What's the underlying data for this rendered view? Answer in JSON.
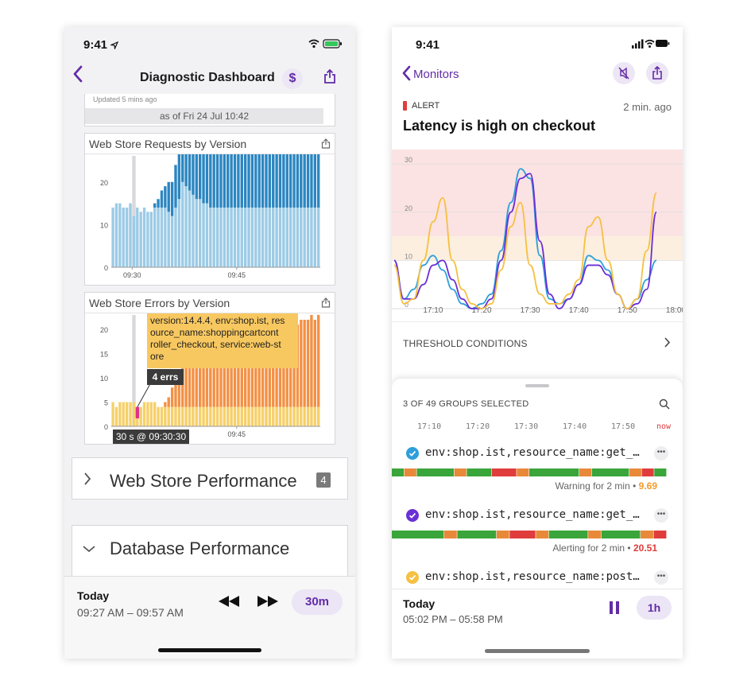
{
  "left": {
    "status": {
      "time": "9:41"
    },
    "nav": {
      "title": "Diagnostic Dashboard"
    },
    "top_card": {
      "updated": "Updated 5 mins ago",
      "as_of": "as of Fri 24 Jul 10:42"
    },
    "requests_widget": {
      "title": "Web Store Requests by Version",
      "y_ticks": [
        "0",
        "10",
        "20"
      ],
      "x_ticks": [
        "09:30",
        "09:45"
      ]
    },
    "errors_widget": {
      "title": "Web Store Errors by Version",
      "y_ticks": [
        "0",
        "5",
        "10",
        "15",
        "20"
      ],
      "x_ticks": [
        "09:45"
      ],
      "tooltip_text": "version:14.4.4, env:shop.ist, resource_name:shoppingcartcontroller_checkout, service:web-store",
      "tooltip_lines": [
        "version:14.4.4, env:shop.ist, res",
        "ource_name:shoppingcartcont",
        "roller_checkout, service:web-st",
        "ore"
      ],
      "errs_badge": "4 errs",
      "time_badge": "30 s @ 09:30:30"
    },
    "groups": [
      {
        "label": "Web Store Performance",
        "count": "4",
        "expanded": false
      },
      {
        "label": "Database Performance",
        "expanded": true
      }
    ],
    "footer": {
      "day": "Today",
      "range": "09:27 AM – 09:57 AM",
      "span": "30m"
    }
  },
  "right": {
    "status": {
      "time": "9:41"
    },
    "nav": {
      "back": "Monitors"
    },
    "alert": {
      "level": "ALERT",
      "ago": "2 min. ago",
      "title": "Latency is high on checkout"
    },
    "chart": {
      "y_ticks": [
        "0",
        "10",
        "20",
        "30"
      ],
      "x_ticks": [
        "17:10",
        "17:20",
        "17:30",
        "17:40",
        "17:50",
        "18:00"
      ]
    },
    "threshold": {
      "label": "THRESHOLD CONDITIONS"
    },
    "groups": {
      "selected": "3 OF 49 GROUPS SELECTED",
      "times": [
        "17:10",
        "17:20",
        "17:30",
        "17:40",
        "17:50",
        "now"
      ],
      "rows": [
        {
          "name": "env:shop.ist,resource_name:get_…",
          "status": "Warning for 2 min",
          "value": "9.69",
          "icon_color": "#2e9fdb",
          "value_color": "#f39a2b"
        },
        {
          "name": "env:shop.ist,resource_name:get_…",
          "status": "Alerting for 2 min",
          "value": "20.51",
          "icon_color": "#6b2fd6",
          "value_color": "#e03c3c"
        },
        {
          "name": "env:shop.ist,resource_name:post…",
          "icon_color": "#f6c042"
        }
      ]
    },
    "footer": {
      "day": "Today",
      "range": "05:02 PM – 05:58 PM",
      "span": "1h"
    }
  },
  "chart_data": [
    {
      "type": "bar",
      "title": "Web Store Requests by Version",
      "x_start": "09:27",
      "x_end": "09:57",
      "ylim": [
        0,
        25
      ],
      "series": [
        {
          "name": "",
          "color": "#9ccbe6",
          "values": [
            14,
            15,
            15,
            14,
            14,
            15,
            12,
            14,
            13,
            14,
            13,
            13,
            14,
            14,
            14,
            14,
            13,
            12,
            14,
            16,
            20,
            19,
            18,
            17,
            16,
            16,
            15,
            15,
            14,
            14,
            14,
            14,
            14,
            14,
            14,
            14,
            14,
            14,
            14,
            14,
            14,
            14,
            14,
            14,
            14,
            14,
            14,
            14,
            14,
            14,
            14,
            14,
            14,
            14,
            14,
            14,
            14,
            14,
            14,
            14
          ]
        },
        {
          "name": "",
          "color": "#2b86c1",
          "values": [
            0,
            0,
            0,
            0,
            0,
            0,
            0,
            0,
            0,
            0,
            0,
            0,
            1,
            2,
            4,
            5,
            7,
            8,
            10,
            12,
            18,
            19,
            18,
            17,
            19,
            20,
            19,
            19,
            18,
            20,
            18,
            19,
            19,
            18,
            18,
            17,
            19,
            19,
            21,
            21,
            21,
            22,
            21,
            20,
            21,
            21,
            22,
            20,
            21,
            19,
            21,
            21,
            20,
            21,
            21,
            20,
            22,
            19,
            19,
            18
          ]
        }
      ]
    },
    {
      "type": "bar",
      "title": "Web Store Errors by Version",
      "x_start": "09:27",
      "x_end": "09:57",
      "ylim": [
        0,
        22
      ],
      "series": [
        {
          "name": "",
          "color": "#f6d06a",
          "values": [
            5,
            4,
            5,
            5,
            5,
            5,
            5,
            4,
            4,
            5,
            5,
            5,
            5,
            4,
            4,
            4,
            4,
            4,
            4,
            4,
            4,
            4,
            4,
            4,
            4,
            4,
            4,
            4,
            4,
            4,
            4,
            4,
            4,
            4,
            4,
            4,
            4,
            4,
            4,
            4,
            4,
            4,
            4,
            4,
            4,
            4,
            4,
            4,
            4,
            4,
            4,
            4,
            4,
            4,
            4,
            4,
            4,
            4,
            4,
            4
          ]
        },
        {
          "name": "",
          "color": "#f39145",
          "values": [
            0,
            0,
            0,
            0,
            0,
            0,
            0,
            0,
            0,
            0,
            0,
            0,
            0,
            0,
            0,
            1,
            2,
            4,
            5,
            6,
            8,
            9,
            10,
            10,
            11,
            11,
            12,
            12,
            13,
            13,
            13,
            13,
            14,
            14,
            13,
            13,
            14,
            14,
            14,
            14,
            15,
            15,
            14,
            15,
            15,
            15,
            16,
            16,
            16,
            17,
            17,
            17,
            16,
            17,
            18,
            18,
            18,
            19,
            18,
            19
          ]
        }
      ]
    },
    {
      "type": "line",
      "title": "Latency is high on checkout",
      "x_start": "17:02",
      "x_end": "18:00",
      "ylim": [
        0,
        33
      ],
      "thresholds": [
        {
          "from": 10,
          "to": 15,
          "color": "#fcefe0"
        },
        {
          "from": 15,
          "to": 33,
          "color": "#fbe3e3"
        }
      ],
      "x": [
        "17:02",
        "17:04",
        "17:06",
        "17:08",
        "17:10",
        "17:12",
        "17:14",
        "17:16",
        "17:18",
        "17:20",
        "17:22",
        "17:24",
        "17:26",
        "17:28",
        "17:30",
        "17:32",
        "17:34",
        "17:36",
        "17:38",
        "17:40",
        "17:42",
        "17:44",
        "17:46",
        "17:48",
        "17:50",
        "17:52",
        "17:54",
        "17:56"
      ],
      "series": [
        {
          "name": "",
          "color": "#2e9fdb",
          "values": [
            10,
            2,
            4,
            9,
            11,
            8,
            4,
            1,
            0,
            1,
            3,
            12,
            22,
            29,
            27,
            11,
            2,
            1,
            2,
            5,
            11,
            10,
            8,
            3,
            0,
            2,
            6,
            10
          ]
        },
        {
          "name": "",
          "color": "#6b2fd6",
          "values": [
            10,
            2,
            2,
            5,
            9,
            10,
            6,
            2,
            0,
            0,
            2,
            10,
            20,
            27,
            28,
            14,
            3,
            0,
            2,
            5,
            9,
            9,
            7,
            3,
            0,
            1,
            4,
            20
          ]
        },
        {
          "name": "",
          "color": "#f6c042",
          "values": [
            9,
            1,
            2,
            10,
            18,
            23,
            10,
            4,
            1,
            0,
            1,
            8,
            17,
            22,
            9,
            3,
            1,
            1,
            3,
            6,
            17,
            19,
            10,
            3,
            0,
            2,
            12,
            24
          ]
        }
      ]
    }
  ]
}
